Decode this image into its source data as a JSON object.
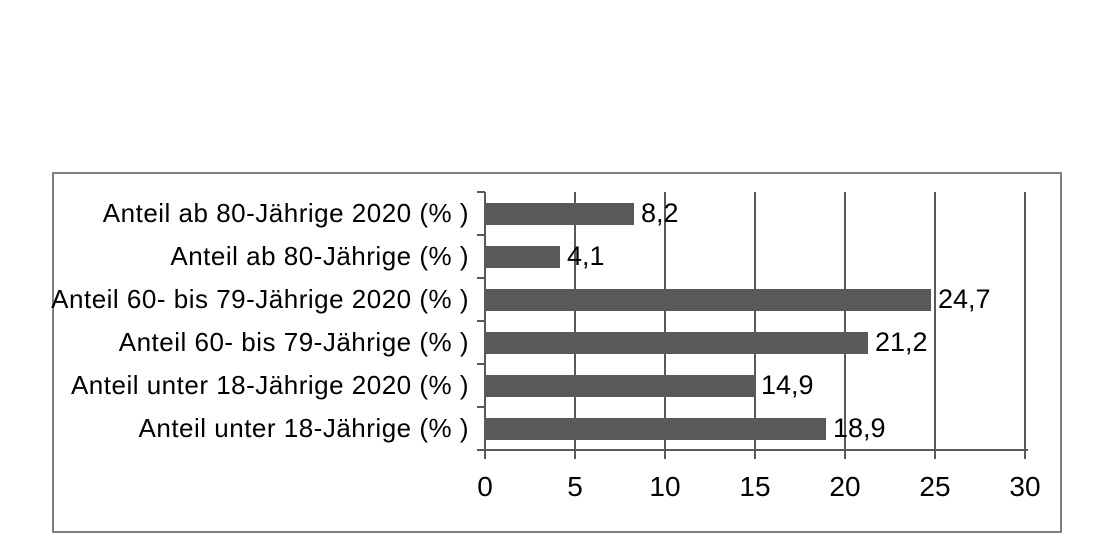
{
  "chart_data": {
    "type": "bar",
    "orientation": "horizontal",
    "title": "",
    "categories": [
      "Anteil ab 80-Jährige 2020 (% )",
      "Anteil ab 80-Jährige (% )",
      "Anteil 60- bis 79-Jährige 2020 (% )",
      "Anteil 60- bis 79-Jährige (% )",
      "Anteil unter 18-Jährige 2020 (% )",
      "Anteil unter 18-Jährige (% )"
    ],
    "values": [
      8.2,
      4.1,
      24.7,
      21.2,
      14.9,
      18.9
    ],
    "value_labels": [
      "8,2",
      "4,1",
      "24,7",
      "21,2",
      "14,9",
      "18,9"
    ],
    "xlabel": "",
    "ylabel": "",
    "xlim": [
      0,
      30
    ],
    "xtick_values": [
      0,
      5,
      10,
      15,
      20,
      25,
      30
    ],
    "xtick_labels": [
      "0",
      "5",
      "10",
      "15",
      "20",
      "25",
      "30"
    ],
    "grid": "vertical",
    "legend": "none",
    "colors": {
      "bar": "#595959",
      "gridline": "#595959",
      "axis": "#595959",
      "frame_border": "#808080",
      "text": "#000000",
      "background": "#ffffff"
    }
  }
}
